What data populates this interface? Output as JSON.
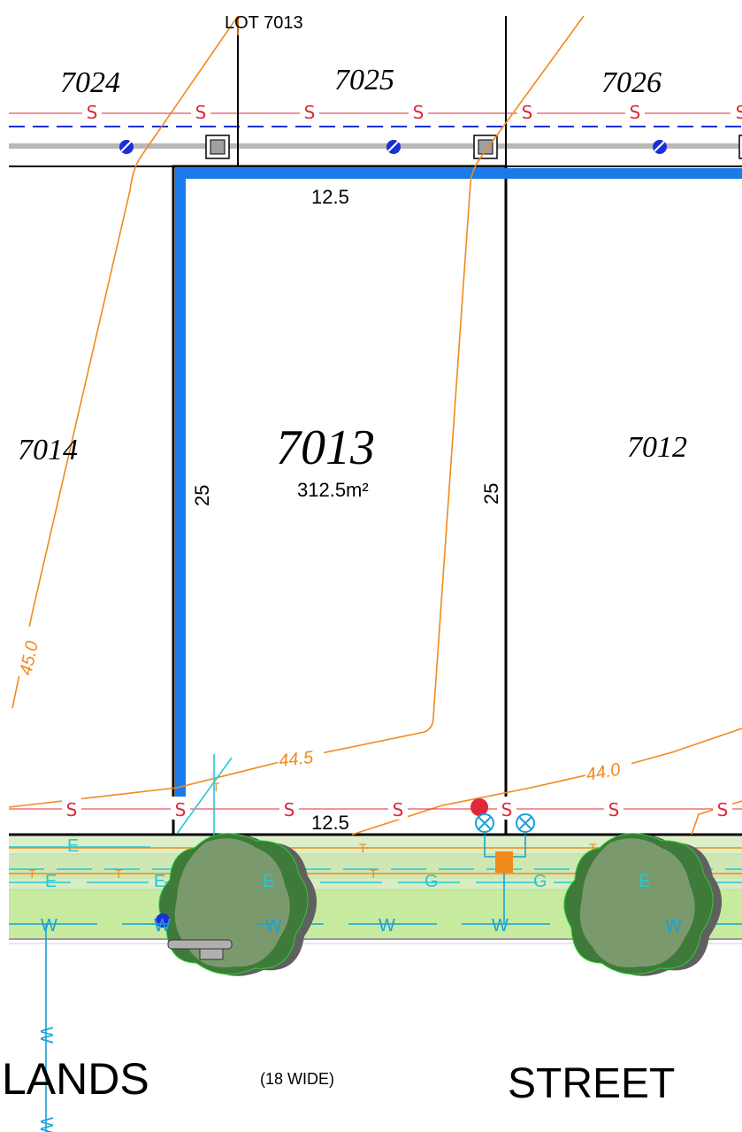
{
  "plan": {
    "lot_label": "LOT 7013",
    "subject_lot": {
      "number": "7013",
      "area": "312.5m²",
      "frontage": "12.5",
      "rear": "12.5",
      "depth_left": "25",
      "depth_right": "25"
    },
    "neighbour_lots": {
      "north_west": "7024",
      "north": "7025",
      "north_east": "7026",
      "west": "7014",
      "east": "7012"
    },
    "contours": [
      "45.0",
      "44.5",
      "44.0"
    ],
    "service_codes": {
      "sewer": "S",
      "telecom": "T",
      "electric": "E",
      "gas": "G",
      "water": "W"
    },
    "street": {
      "name_left": "LANDS",
      "width_note": "(18 WIDE)",
      "name_right": "STREET"
    }
  },
  "colors": {
    "lot_boundary": "#000000",
    "subject_edge": "#1a7be8",
    "sewer": "#e0283a",
    "sewer_dash": "#1c2fd6",
    "contour": "#f08a1c",
    "electric": "#25c8d8",
    "water": "#1aa0d8",
    "verge": "#c6eb9f",
    "tree_light": "#7a9a6d",
    "tree_dark": "#3e7a3a"
  }
}
